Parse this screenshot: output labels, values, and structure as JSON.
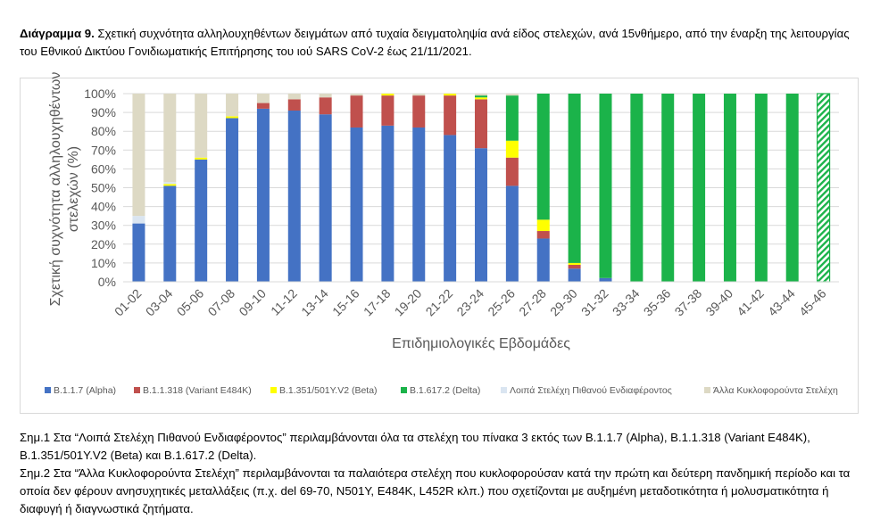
{
  "caption": {
    "bold": "Διάγραμμα 9.",
    "text": " Σχετική συχνότητα αλληλουχηθέντων δειγμάτων από τυχαία δειγματοληψία ανά είδος στελεχών, ανά 15νθήμερο, από την έναρξη της λειτουργίας του Εθνικού Δικτύου Γονιδιωματικής Επιτήρησης του ιού SARS CoV-2 έως 21/11/2021."
  },
  "notes": [
    "Σημ.1 Στα “Λοιπά Στελέχη Πιθανού Ενδιαφέροντος” περιλαμβάνονται όλα τα στελέχη του πίνακα 3 εκτός των Β.1.1.7 (Alpha), Β.1.1.318 (Variant E484K), B.1.351/501Y.V2 (Beta) και B.1.617.2 (Delta).",
    "Σημ.2 Στα “Άλλα Κυκλοφορούντα Στελέχη” περιλαμβάνονται τα παλαιότερα στελέχη που κυκλοφορούσαν κατά την πρώτη και δεύτερη πανδημική περίοδο και τα οποία δεν φέρουν ανησυχητικές μεταλλάξεις (π.χ. del 69-70, N501Y, E484K, L452R κλπ.) που σχετίζονται με αυξημένη μεταδοτικότητα ή μολυσματικότητα ή διαφυγή ή διαγνωστικά ζητήματα."
  ],
  "colors": {
    "alpha": "#4472c4",
    "e484k": "#c0504d",
    "beta": "#ffff00",
    "delta": "#1bb34a",
    "other_interest": "#dae5f1",
    "other_circulating": "#ddd9c4",
    "grid": "#d9d9d9",
    "text": "#595959"
  },
  "chart_data": {
    "type": "bar",
    "stacked": true,
    "xlabel": "Επιδημιολογικές Εβδομάδες",
    "ylabel": "Σχετική συχνότητα αλληλουχηθέντων στελεχών (%)",
    "ylim": [
      0,
      100
    ],
    "yticks": [
      "0%",
      "10%",
      "20%",
      "30%",
      "40%",
      "50%",
      "60%",
      "70%",
      "80%",
      "90%",
      "100%"
    ],
    "legend_position": "bottom",
    "categories": [
      "01-02",
      "03-04",
      "05-06",
      "07-08",
      "09-10",
      "11-12",
      "13-14",
      "15-16",
      "17-18",
      "19-20",
      "21-22",
      "23-24",
      "25-26",
      "27-28",
      "29-30",
      "31-32",
      "33-34",
      "35-36",
      "37-38",
      "39-40",
      "41-42",
      "43-44",
      "45-46"
    ],
    "hatched_last_bar": true,
    "series": [
      {
        "key": "alpha",
        "name": "B.1.1.7 (Alpha)",
        "values": [
          31,
          51,
          65,
          87,
          92,
          91,
          89,
          82,
          83,
          82,
          78,
          71,
          51,
          23,
          7,
          2,
          0,
          0,
          0,
          0,
          0,
          0,
          0
        ]
      },
      {
        "key": "e484k",
        "name": "B.1.1.318 (Variant E484K)",
        "values": [
          0,
          0,
          0,
          0,
          3,
          6,
          9,
          17,
          16,
          17,
          21,
          26,
          15,
          4,
          2,
          0,
          0,
          0,
          0,
          0,
          0,
          0,
          0
        ]
      },
      {
        "key": "beta",
        "name": "B.1.351/501Y.V2 (Beta)",
        "values": [
          0,
          1,
          1,
          1,
          0,
          0,
          0,
          0,
          1,
          0,
          1,
          1,
          9,
          6,
          1,
          0,
          0,
          0,
          0,
          0,
          0,
          0,
          0
        ]
      },
      {
        "key": "delta",
        "name": "B.1.617.2 (Delta)",
        "values": [
          0,
          0,
          0,
          0,
          0,
          0,
          0,
          0,
          0,
          0,
          0,
          1,
          24,
          67,
          90,
          98,
          100,
          100,
          100,
          100,
          100,
          100,
          100
        ]
      },
      {
        "key": "other_interest",
        "name": "Λοιπά Στελέχη Πιθανού Ενδιαφέροντος",
        "values": [
          4,
          1,
          0,
          0,
          0,
          0,
          0,
          0,
          0,
          0,
          0,
          0,
          0,
          0,
          0,
          0,
          0,
          0,
          0,
          0,
          0,
          0,
          0
        ]
      },
      {
        "key": "other_circulating",
        "name": "Άλλα Κυκλοφορούντα Στελέχη",
        "values": [
          65,
          47,
          34,
          12,
          5,
          3,
          2,
          1,
          0,
          1,
          0,
          1,
          1,
          0,
          0,
          0,
          0,
          0,
          0,
          0,
          0,
          0,
          0
        ]
      }
    ]
  }
}
